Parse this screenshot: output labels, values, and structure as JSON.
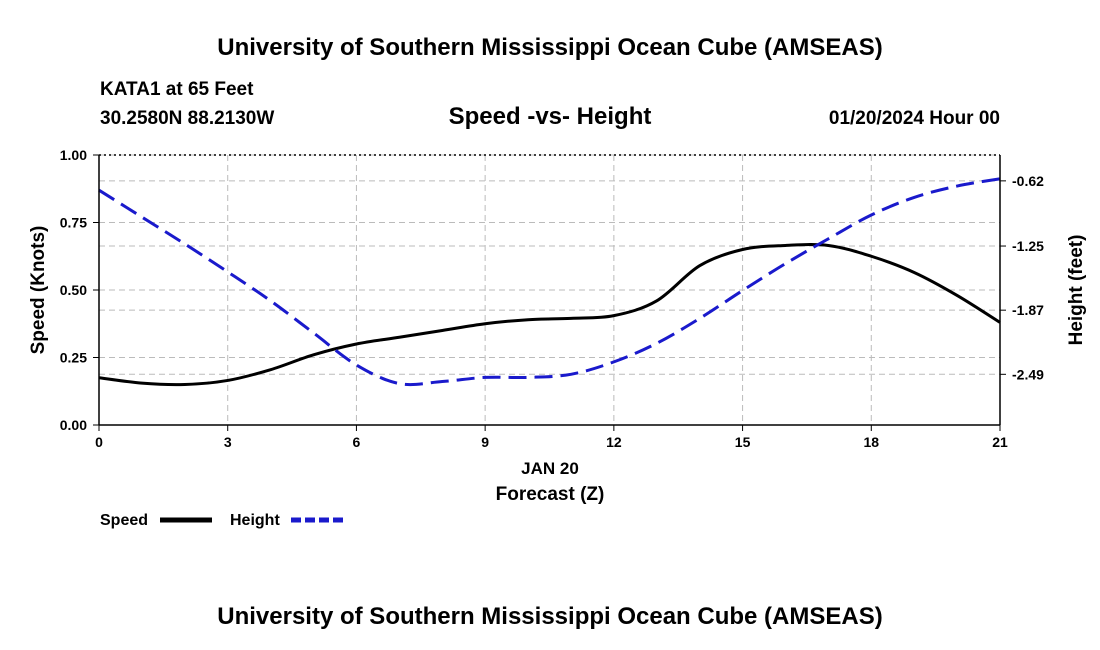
{
  "chart_data": {
    "type": "line",
    "title": "University of Southern Mississippi Ocean Cube (AMSEAS)",
    "footer_title": "University of Southern Mississippi Ocean Cube (AMSEAS)",
    "station": "KATA1 at 65 Feet",
    "coordinates": "30.2580N  88.2130W",
    "subtitle": "Speed -vs- Height",
    "date_label": "01/20/2024 Hour 00",
    "xlabel": "Forecast (Z)",
    "xdate": "JAN 20",
    "ylabel": "Speed (Knots)",
    "y2label": "Height (feet)",
    "xlim": [
      0,
      21
    ],
    "ylim": [
      0,
      1
    ],
    "y2lim": [
      -0.37,
      -2.98
    ],
    "x_ticks": [
      "0",
      "3",
      "6",
      "9",
      "12",
      "15",
      "18",
      "21"
    ],
    "y_ticks": [
      "0.00",
      "0.25",
      "0.50",
      "0.75",
      "1.00"
    ],
    "y_tick_values": [
      0,
      0.25,
      0.5,
      0.75,
      1.0
    ],
    "y2_ticks": [
      "-0.62",
      "-1.25",
      "-1.87",
      "-2.49"
    ],
    "y2_tick_values": [
      -0.62,
      -1.25,
      -1.87,
      -2.49
    ],
    "grid": true,
    "legend": [
      "Speed",
      "Height"
    ],
    "series": [
      {
        "name": "Speed",
        "axis": "left",
        "style": "solid",
        "x": [
          0,
          1,
          2,
          3,
          4,
          5,
          6,
          7,
          8,
          9,
          10,
          11,
          12,
          13,
          14,
          15,
          16,
          17,
          18,
          19,
          20,
          21
        ],
        "values": [
          0.175,
          0.155,
          0.15,
          0.165,
          0.205,
          0.26,
          0.3,
          0.325,
          0.35,
          0.375,
          0.39,
          0.395,
          0.405,
          0.46,
          0.59,
          0.65,
          0.665,
          0.665,
          0.625,
          0.565,
          0.48,
          0.38
        ]
      },
      {
        "name": "Height",
        "axis": "right",
        "style": "dashed",
        "x": [
          0,
          1,
          2,
          3,
          4,
          5,
          6,
          7,
          8,
          9,
          10,
          11,
          12,
          13,
          14,
          15,
          16,
          17,
          18,
          19,
          20,
          21
        ],
        "values": [
          -0.71,
          -0.97,
          -1.23,
          -1.5,
          -1.78,
          -2.09,
          -2.4,
          -2.58,
          -2.56,
          -2.52,
          -2.52,
          -2.49,
          -2.37,
          -2.19,
          -1.95,
          -1.68,
          -1.42,
          -1.18,
          -0.95,
          -0.78,
          -0.67,
          -0.6
        ]
      }
    ],
    "colors": {
      "Speed": "#000000",
      "Height": "#1a1acc",
      "grid": "#bbbbbb"
    }
  }
}
